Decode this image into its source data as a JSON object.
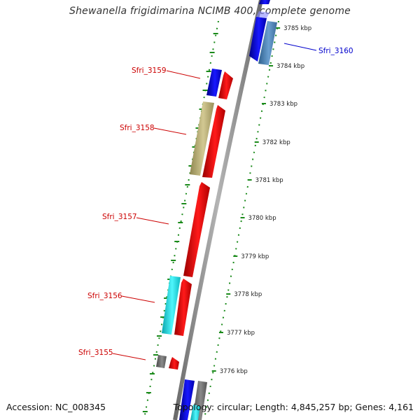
{
  "title": "Shewanella frigidimarina NCIMB 400, complete genome",
  "footer": {
    "accession": "Accession: NC_008345",
    "topology": "Topology: circular; Length: 4,845,257 bp; Genes: 4,161"
  },
  "ticks": [
    {
      "label": "3785 kbp"
    },
    {
      "label": "3784 kbp"
    },
    {
      "label": "3783 kbp"
    },
    {
      "label": "3782 kbp"
    },
    {
      "label": "3781 kbp"
    },
    {
      "label": "3780 kbp"
    },
    {
      "label": "3779 kbp"
    },
    {
      "label": "3778 kbp"
    },
    {
      "label": "3777 kbp"
    },
    {
      "label": "3776 kbp"
    }
  ],
  "genes": [
    {
      "name": "Sfri_3160",
      "color": "#0000cc"
    },
    {
      "name": "Sfri_3159",
      "color": "#cc0000"
    },
    {
      "name": "Sfri_3158",
      "color": "#cc0000"
    },
    {
      "name": "Sfri_3157",
      "color": "#cc0000"
    },
    {
      "name": "Sfri_3156",
      "color": "#cc0000"
    },
    {
      "name": "Sfri_3155",
      "color": "#cc0000"
    }
  ],
  "colors": {
    "backbone": "#8c8c8c",
    "tick_dots": "#1a8a1a",
    "blue": "#1010ee",
    "steelblue": "#4f86b8",
    "red": "#ee0a0a",
    "khaki": "#bdb37a",
    "cyan": "#16e6ee",
    "gray": "#6e6e6e"
  }
}
